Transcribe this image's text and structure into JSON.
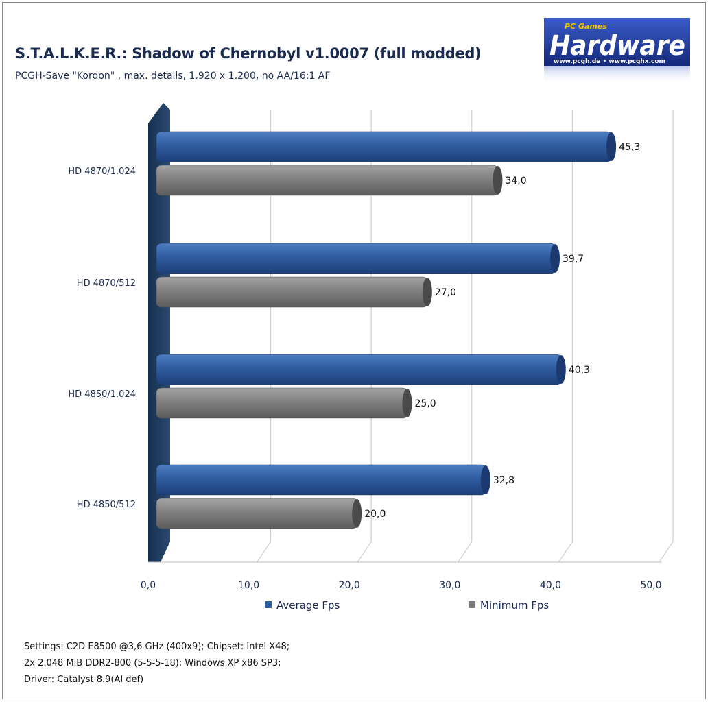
{
  "title": "S.T.A.L.K.E.R.: Shadow of Chernobyl v1.0007 (full modded)",
  "subtitle": "PCGH-Save \"Kordon\" , max. details, 1.920 x 1.200,  no AA/16:1 AF",
  "logo": {
    "top_text": "PC Games",
    "main_text": "Hardware",
    "url_text": "www.pcgh.de • www.pcghx.com",
    "colors": {
      "background": "#1f3a96",
      "text": "#ffffff",
      "accent": "#f2c200"
    }
  },
  "legend": {
    "average_label": "Average Fps",
    "minimum_label": "Minimum Fps"
  },
  "notes": [
    "Settings: C2D E8500 @3,6 GHz (400x9); Chipset: Intel X48;",
    "2x 2.048 MiB DDR2-800 (5-5-5-18);  Windows XP x86 SP3;",
    "Driver: Catalyst 8.9(AI def)"
  ],
  "colors": {
    "average": "#2f5da0",
    "minimum": "#7f7f7f",
    "wall": "#1f3b5f",
    "text": "#1a2a50"
  },
  "chart_data": {
    "type": "bar",
    "orientation": "horizontal",
    "title": "S.T.A.L.K.E.R.: Shadow of Chernobyl v1.0007 (full modded)",
    "subtitle": "PCGH-Save \"Kordon\" , max. details, 1.920 x 1.200,  no AA/16:1 AF",
    "categories": [
      "HD 4870/1.024",
      "HD 4870/512",
      "HD 4850/1.024",
      "HD 4850/512"
    ],
    "series": [
      {
        "name": "Average Fps",
        "values": [
          45.3,
          39.7,
          40.3,
          32.8
        ],
        "labels": [
          "45,3",
          "39,7",
          "40,3",
          "32,8"
        ]
      },
      {
        "name": "Minimum Fps",
        "values": [
          34.0,
          27.0,
          25.0,
          20.0
        ],
        "labels": [
          "34,0",
          "27,0",
          "25,0",
          "20,0"
        ]
      }
    ],
    "xlim": [
      0,
      50
    ],
    "xticks": [
      0,
      10,
      20,
      30,
      40,
      50
    ],
    "xtick_labels": [
      "0,0",
      "10,0",
      "20,0",
      "30,0",
      "40,0",
      "50,0"
    ],
    "grid": true,
    "legend_position": "bottom"
  }
}
